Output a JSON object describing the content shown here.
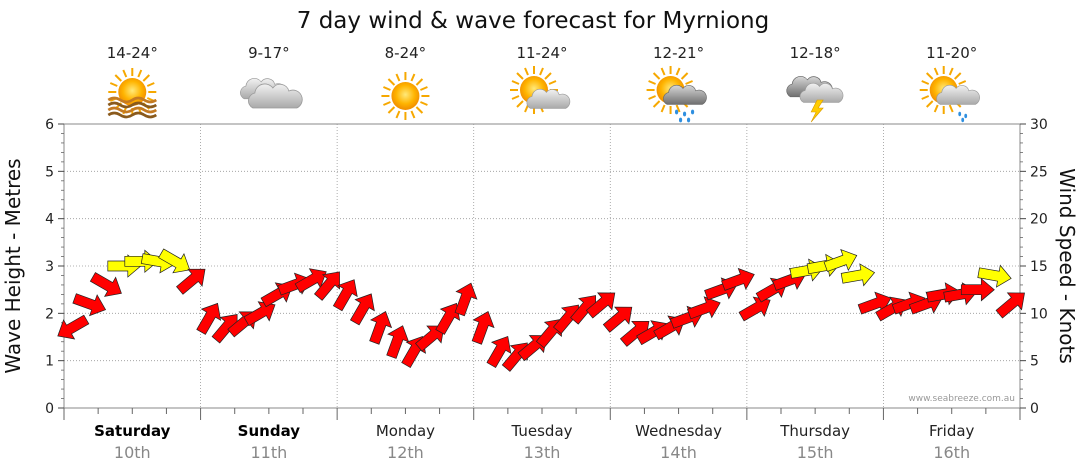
{
  "chart_data": {
    "type": "scatter",
    "title": "7 day wind & wave forecast for Myrniong",
    "ylabel_left": "Wave Height - Metres",
    "ylabel_right": "Wind Speed - Knots",
    "ylim_left": [
      0,
      6
    ],
    "ylim_right": [
      0,
      30
    ],
    "yticks_left": [
      "0",
      "1",
      "2",
      "3",
      "4",
      "5",
      "6"
    ],
    "yticks_right": [
      "0",
      "5",
      "10",
      "15",
      "20",
      "25",
      "30"
    ],
    "grid": "dotted",
    "credit": "www.seabreeze.com.au",
    "days": [
      {
        "day": "Saturday",
        "date": "10th",
        "temp": "14-24°",
        "icon": "sunny-haze-icon",
        "bold": true
      },
      {
        "day": "Sunday",
        "date": "11th",
        "temp": "9-17°",
        "icon": "cloudy-icon",
        "bold": true
      },
      {
        "day": "Monday",
        "date": "12th",
        "temp": "8-24°",
        "icon": "sunny-icon",
        "bold": false
      },
      {
        "day": "Tuesday",
        "date": "13th",
        "temp": "11-24°",
        "icon": "partly-cloudy-icon",
        "bold": false
      },
      {
        "day": "Wednesday",
        "date": "14th",
        "temp": "12-21°",
        "icon": "sun-rain-icon",
        "bold": false
      },
      {
        "day": "Thursday",
        "date": "15th",
        "temp": "12-18°",
        "icon": "thunderstorm-icon",
        "bold": false
      },
      {
        "day": "Friday",
        "date": "16th",
        "temp": "11-20°",
        "icon": "sun-shower-icon",
        "bold": false
      }
    ],
    "colors": {
      "strong": "#ff0000",
      "moderate": "#ffff00",
      "outline": "#222222"
    },
    "wind_series": {
      "name": "Wind Speed (knots)",
      "x_hours": [
        0,
        3,
        6,
        9,
        12,
        15,
        18,
        21,
        24,
        27,
        30,
        33,
        36,
        39,
        42,
        45,
        48,
        51,
        54,
        57,
        60,
        63,
        66,
        69,
        72,
        75,
        78,
        81,
        84,
        87,
        90,
        93,
        96,
        99,
        102,
        105,
        108,
        111,
        114,
        117,
        120,
        123,
        126,
        129,
        132,
        135,
        138,
        141,
        144,
        147,
        150,
        153,
        156,
        159,
        162,
        165
      ],
      "speed": [
        8.5,
        11,
        13,
        15,
        15.5,
        15.5,
        15.5,
        13.5,
        9.5,
        8.5,
        9,
        10,
        12,
        13,
        13.5,
        13,
        12,
        10.5,
        8.5,
        7,
        6,
        7.5,
        9.5,
        11.5,
        8.5,
        6,
        5.5,
        6.5,
        8,
        9.5,
        10.5,
        11,
        9.5,
        8,
        8,
        8.5,
        9.5,
        10.5,
        12.5,
        13.5,
        10.5,
        12.5,
        13.5,
        14.5,
        15,
        15.5,
        14,
        11,
        10.5,
        11,
        11,
        12,
        12,
        12.5,
        14,
        11
      ],
      "direction_deg": [
        60,
        290,
        300,
        270,
        270,
        280,
        300,
        230,
        210,
        220,
        230,
        240,
        240,
        250,
        240,
        220,
        210,
        210,
        200,
        200,
        210,
        230,
        210,
        200,
        200,
        210,
        220,
        230,
        220,
        220,
        220,
        230,
        230,
        230,
        240,
        240,
        250,
        250,
        250,
        250,
        240,
        240,
        250,
        260,
        260,
        250,
        260,
        250,
        240,
        250,
        250,
        260,
        260,
        270,
        280,
        230
      ]
    }
  }
}
